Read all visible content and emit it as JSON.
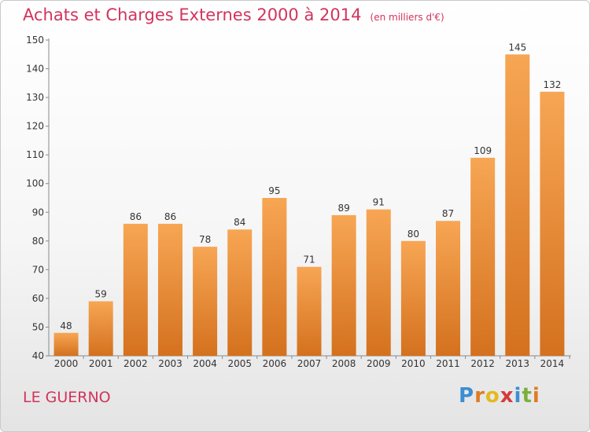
{
  "header": {
    "title": "Achats et Charges Externes 2000 à 2014",
    "unit": "(en milliers d'€)"
  },
  "footer": {
    "place": "LE GUERNO",
    "logo": {
      "letters": [
        "P",
        "r",
        "o",
        "x",
        "i",
        "t",
        "i"
      ],
      "colors": [
        "#3c8ed3",
        "#e07b25",
        "#e4b820",
        "#d23b3b",
        "#3c8ed3",
        "#7ab03c",
        "#e07b25"
      ]
    }
  },
  "colors": {
    "bar_top": "#f7a654",
    "bar_bottom": "#d4711e",
    "title": "#d2345c"
  },
  "chart_data": {
    "type": "bar",
    "title": "Achats et Charges Externes 2000 à 2014",
    "subtitle": "(en milliers d'€)",
    "categories": [
      "2000",
      "2001",
      "2002",
      "2003",
      "2004",
      "2005",
      "2006",
      "2007",
      "2008",
      "2009",
      "2010",
      "2011",
      "2012",
      "2013",
      "2014"
    ],
    "values": [
      48,
      59,
      86,
      86,
      78,
      84,
      95,
      71,
      89,
      91,
      80,
      87,
      109,
      145,
      132
    ],
    "ylim": [
      40,
      150
    ],
    "yticks": [
      40,
      50,
      60,
      70,
      80,
      90,
      100,
      110,
      120,
      130,
      140,
      150
    ],
    "grid": false,
    "data_labels": true
  }
}
